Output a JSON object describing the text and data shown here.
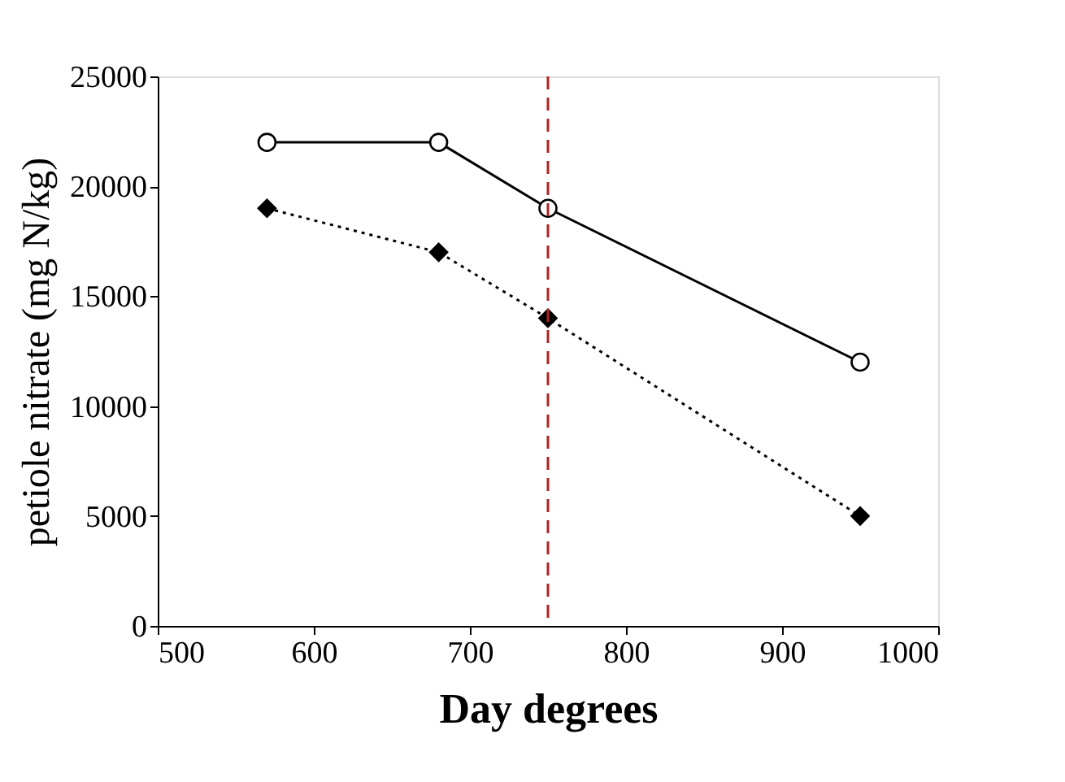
{
  "chart_data": {
    "type": "line",
    "xlabel": "Day degrees",
    "ylabel": "petiole nitrate  (mg N/kg)",
    "xlim": [
      500,
      1000
    ],
    "xticks": [
      500,
      600,
      700,
      800,
      900,
      1000
    ],
    "ylim": [
      0,
      25000
    ],
    "yticks": [
      0,
      5000,
      10000,
      15000,
      20000,
      25000
    ],
    "grid": false,
    "series": [
      {
        "color": "#000000",
        "marker": "circle",
        "line_style": "solid",
        "x": [
          570,
          680,
          750,
          950
        ],
        "values": [
          22000,
          22000,
          19000,
          12000
        ]
      },
      {
        "color": "#000000",
        "marker": "diamond",
        "line_style": "dotted",
        "x": [
          570,
          680,
          750,
          950
        ],
        "values": [
          19000,
          17000,
          14000,
          5000
        ]
      }
    ],
    "ref_lines": [
      {
        "axis": "x",
        "value": 750,
        "color": "#b22222",
        "line_style": "dashed"
      }
    ]
  }
}
